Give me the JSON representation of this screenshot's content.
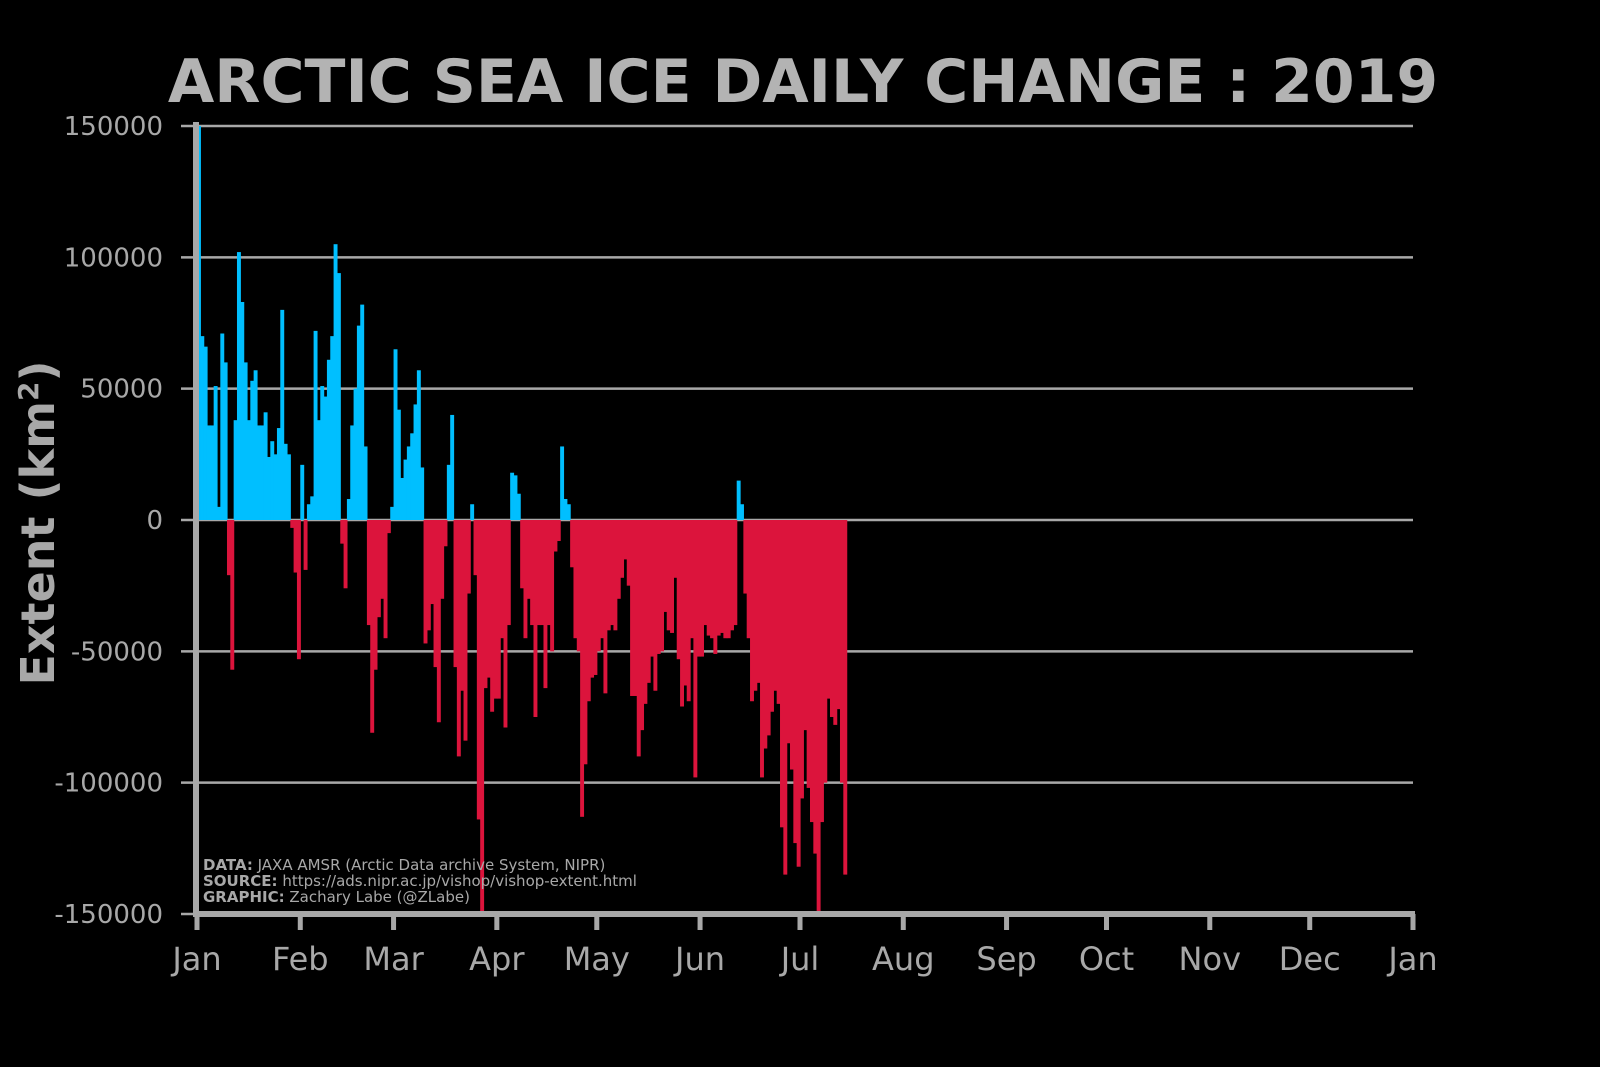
{
  "chart_data": {
    "type": "bar",
    "title": "ARCTIC SEA ICE DAILY CHANGE : 2019",
    "ylabel": "Extent (km",
    "ylabel_superscript": "2",
    "ylabel_close": ")",
    "ylim": [
      -150000,
      150000
    ],
    "yticks": [
      150000,
      100000,
      50000,
      0,
      -50000,
      -100000,
      -150000
    ],
    "ytick_labels": [
      "150000",
      "100000",
      "50000",
      "0",
      "-50000",
      "-100000",
      "-150000"
    ],
    "xtick_labels": [
      "Jan",
      "Feb",
      "Mar",
      "Apr",
      "May",
      "Jun",
      "Jul",
      "Aug",
      "Sep",
      "Oct",
      "Nov",
      "Dec",
      "Jan"
    ],
    "x_start": "2019-01-01",
    "x_end": "2020-01-01",
    "grid": true,
    "colors": {
      "positive": "#00bfff",
      "negative": "#dc143c",
      "background": "#000000",
      "text": "#a8a8a8",
      "grid": "#a8a8a8"
    },
    "values": [
      150000,
      70000,
      66000,
      36000,
      36000,
      51000,
      5000,
      71000,
      60000,
      -21000,
      -57000,
      38000,
      102000,
      83000,
      60000,
      38000,
      53000,
      57000,
      36000,
      36000,
      41000,
      24000,
      30000,
      25000,
      35000,
      80000,
      29000,
      25000,
      -3000,
      -20000,
      -53000,
      21000,
      -19000,
      6000,
      9000,
      72000,
      38000,
      51000,
      47000,
      61000,
      70000,
      105000,
      94000,
      -9000,
      -26000,
      8000,
      36000,
      50000,
      74000,
      82000,
      28000,
      -40000,
      -81000,
      -57000,
      -37000,
      -30000,
      -45000,
      -5000,
      5000,
      65000,
      42000,
      16000,
      23000,
      28000,
      33000,
      44000,
      57000,
      20000,
      -47000,
      -42000,
      -32000,
      -56000,
      -77000,
      -30000,
      -10000,
      21000,
      40000,
      -56000,
      -90000,
      -65000,
      -84000,
      -28000,
      6000,
      -21000,
      -114000,
      -150000,
      -64000,
      -60000,
      -73000,
      -68000,
      -68000,
      -45000,
      -79000,
      -40000,
      18000,
      17000,
      10000,
      -26000,
      -45000,
      -30000,
      -40000,
      -75000,
      -40000,
      -40000,
      -64000,
      -40000,
      -50000,
      -12000,
      -8000,
      28000,
      8000,
      6000,
      -18000,
      -45000,
      -50000,
      -113000,
      -93000,
      -69000,
      -60000,
      -59000,
      -50000,
      -45000,
      -66000,
      -42000,
      -40000,
      -42000,
      -30000,
      -22000,
      -15000,
      -25000,
      -67000,
      -67000,
      -90000,
      -80000,
      -70000,
      -62000,
      -52000,
      -65000,
      -51000,
      -50000,
      -35000,
      -42000,
      -43000,
      -22000,
      -53000,
      -71000,
      -63000,
      -69000,
      -45000,
      -98000,
      -52000,
      -52000,
      -40000,
      -44000,
      -45000,
      -51000,
      -44000,
      -43000,
      -45000,
      -45000,
      -42000,
      -40000,
      15000,
      6000,
      -28000,
      -45000,
      -69000,
      -65000,
      -62000,
      -98000,
      -87000,
      -82000,
      -73000,
      -65000,
      -70000,
      -117000,
      -135000,
      -85000,
      -95000,
      -123000,
      -132000,
      -106000,
      -80000,
      -102000,
      -115000,
      -127000,
      -150000,
      -115000,
      -100000,
      -68000,
      -75000,
      -78000,
      -72000,
      -100000,
      -135000
    ]
  },
  "credits": {
    "data_label": "DATA:",
    "data_text": " JAXA AMSR (Arctic Data archive System, NIPR)",
    "source_label": "SOURCE:",
    "source_text": " https://ads.nipr.ac.jp/vishop/vishop-extent.html",
    "graphic_label": "GRAPHIC:",
    "graphic_text": " Zachary Labe (@ZLabe)"
  }
}
